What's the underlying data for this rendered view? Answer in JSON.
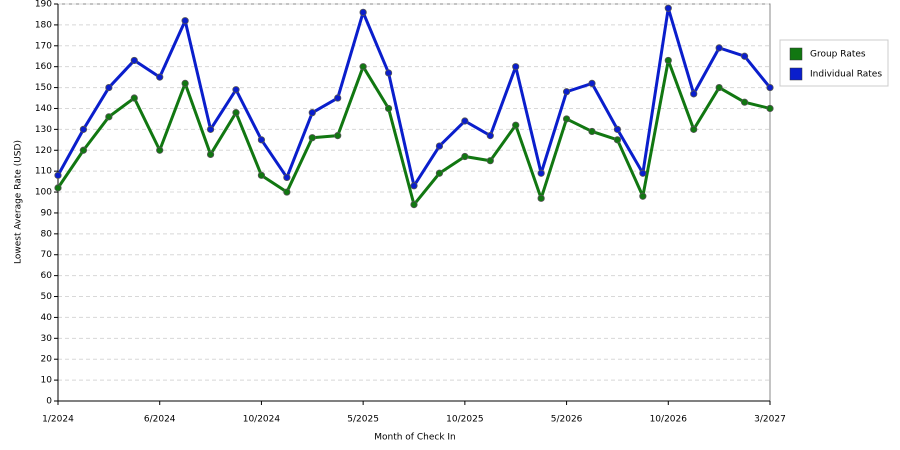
{
  "chart_data": {
    "type": "line",
    "x_label": "Month of Check In",
    "y_label": "Lowest Average Rate (USD)",
    "categories": [
      "1/2024",
      null,
      null,
      null,
      "6/2024",
      null,
      null,
      null,
      "10/2024",
      null,
      null,
      null,
      "5/2025",
      null,
      null,
      null,
      "10/2025",
      null,
      null,
      null,
      "5/2026",
      null,
      null,
      null,
      "10/2026",
      null,
      null,
      null,
      "3/2027"
    ],
    "series": [
      {
        "name": "Group Rates",
        "color": "#117711",
        "values": [
          102,
          120,
          136,
          145,
          120,
          152,
          118,
          138,
          108,
          100,
          126,
          127,
          160,
          140,
          94,
          109,
          117,
          115,
          132,
          97,
          135,
          129,
          125,
          98,
          163,
          130,
          150,
          143,
          140
        ]
      },
      {
        "name": "Individual Rates",
        "color": "#0a1ecc",
        "values": [
          108,
          130,
          150,
          163,
          155,
          182,
          130,
          149,
          125,
          107,
          138,
          145,
          186,
          157,
          103,
          122,
          134,
          127,
          160,
          109,
          148,
          152,
          130,
          109,
          188,
          147,
          169,
          165,
          150
        ]
      }
    ],
    "ylim": [
      0,
      190
    ],
    "yticks": [
      0,
      10,
      20,
      30,
      40,
      50,
      60,
      70,
      80,
      90,
      100,
      110,
      120,
      130,
      140,
      150,
      160,
      170,
      180,
      190
    ],
    "grid": true,
    "legend": "right"
  }
}
